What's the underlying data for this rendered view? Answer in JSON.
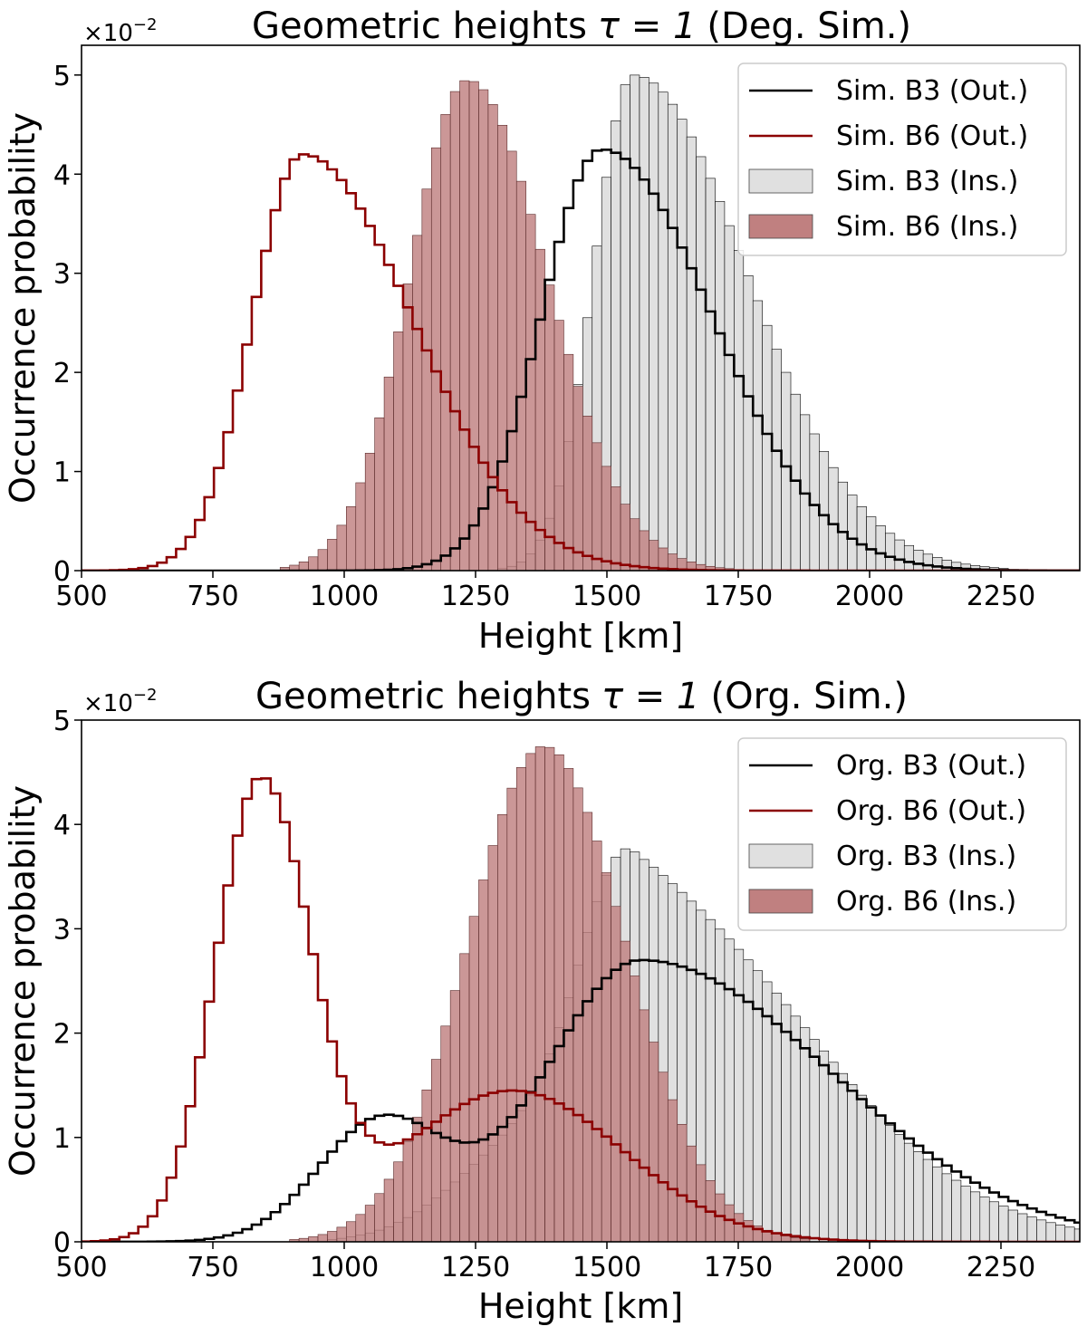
{
  "chart_data": [
    {
      "type": "histogram",
      "title_prefix": "Geometric heights",
      "title_tau": "τ = 1",
      "title_suffix": "(Deg. Sim.)",
      "scale_base": "×10",
      "scale_exp": "−2",
      "xlabel": "Height [km]",
      "ylabel": "Occurrence probability",
      "xlim": [
        500,
        2400
      ],
      "ylim": [
        0,
        5.3
      ],
      "xticks": [
        500,
        750,
        1000,
        1250,
        1500,
        1750,
        2000,
        2250
      ],
      "yticks": [
        0,
        1,
        2,
        3,
        4,
        5
      ],
      "legend_position": "top-right",
      "bin_start": 500,
      "bin_width": 18,
      "colors": {
        "b3_line": "#000000",
        "b6_line": "#8b0000",
        "b3_fill": "#e0e0e0",
        "b6_fill": "#c08080"
      },
      "series": [
        {
          "key": "b3_out",
          "name": "Sim. B3 (Out.)",
          "kind": "line",
          "mu": 1490,
          "sigma_left": 115,
          "sigma_right": 210,
          "peak": 4.25
        },
        {
          "key": "b6_out",
          "name": "Sim. B6 (Out.)",
          "kind": "line",
          "mu": 920,
          "sigma_left": 95,
          "sigma_right": 210,
          "peak": 4.2
        },
        {
          "key": "b3_ins",
          "name": "Sim. B3 (Ins.)",
          "kind": "bar",
          "mu": 1550,
          "sigma_left": 75,
          "sigma_right": 215,
          "peak": 5.0
        },
        {
          "key": "b6_ins",
          "name": "Sim. B6 (Ins.)",
          "kind": "bar",
          "mu": 1235,
          "sigma_left": 110,
          "sigma_right": 150,
          "peak": 4.95
        }
      ]
    },
    {
      "type": "histogram",
      "title_prefix": "Geometric heights",
      "title_tau": "τ = 1",
      "title_suffix": "(Org. Sim.)",
      "scale_base": "×10",
      "scale_exp": "−2",
      "xlabel": "Height [km]",
      "ylabel": "Occurrence probability",
      "xlim": [
        500,
        2400
      ],
      "ylim": [
        0,
        5.0
      ],
      "xticks": [
        500,
        750,
        1000,
        1250,
        1500,
        1750,
        2000,
        2250
      ],
      "yticks": [
        0,
        1,
        2,
        3,
        4,
        5
      ],
      "legend_position": "top-right",
      "bin_start": 500,
      "bin_width": 18,
      "colors": {
        "b3_line": "#000000",
        "b6_line": "#8b0000",
        "b3_fill": "#e0e0e0",
        "b6_fill": "#c08080"
      },
      "series": [
        {
          "key": "b3_out",
          "name": "Org. B3 (Out.)",
          "kind": "line",
          "mu": 1565,
          "sigma_left": 180,
          "sigma_right": 360,
          "peak": 2.7,
          "mu2": 1070,
          "sigma2": 120,
          "peak2": 1.15
        },
        {
          "key": "b6_out",
          "name": "Org. B6 (Out.)",
          "kind": "line",
          "mu": 840,
          "sigma_left": 85,
          "sigma_right": 95,
          "peak": 4.35,
          "mu2": 1320,
          "sigma2": 210,
          "peak2": 1.45
        },
        {
          "key": "b3_ins",
          "name": "Org. B3 (Ins.)",
          "kind": "bar",
          "mu": 1550,
          "sigma_left": 95,
          "sigma_right": 330,
          "peak": 3.35,
          "mu2": 1360,
          "sigma2": 140,
          "peak2": 1.0
        },
        {
          "key": "b6_ins",
          "name": "Org. B6 (Ins.)",
          "kind": "bar",
          "mu": 1380,
          "sigma_left": 145,
          "sigma_right": 155,
          "peak": 4.75
        }
      ]
    }
  ]
}
